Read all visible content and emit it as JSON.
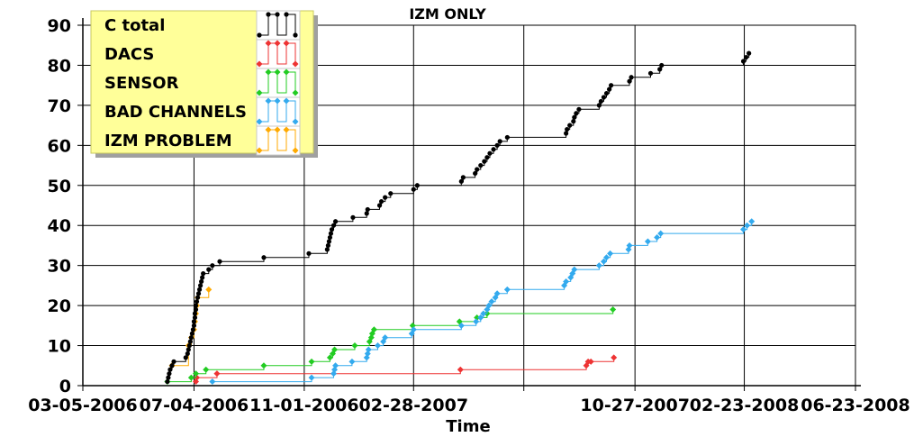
{
  "chart_data": {
    "type": "line",
    "step": true,
    "title": "IZM ONLY",
    "xlabel": "Time",
    "ylabel": "",
    "ylim": [
      0,
      90
    ],
    "yticks": [
      0,
      10,
      20,
      30,
      40,
      50,
      60,
      70,
      80,
      90
    ],
    "xlim": [
      "2006-03-05",
      "2008-06-23"
    ],
    "xticks": [
      {
        "date": "2006-03-05",
        "label": "03-05-2006"
      },
      {
        "date": "2006-07-04",
        "label": "07-04-2006"
      },
      {
        "date": "2006-11-01",
        "label": "11-01-2006"
      },
      {
        "date": "2007-02-28",
        "label": "02-28-2007"
      },
      {
        "date": "2007-06-28",
        "label": ""
      },
      {
        "date": "2007-10-27",
        "label": "10-27-2007"
      },
      {
        "date": "2008-02-23",
        "label": "02-23-2008"
      },
      {
        "date": "2008-06-23",
        "label": "06-23-2008"
      }
    ],
    "grid": true,
    "legend_position": "top-left",
    "series": [
      {
        "name": "C total",
        "color": "#000000",
        "points": [
          [
            "2006-06-05",
            1
          ],
          [
            "2006-06-06",
            2
          ],
          [
            "2006-06-07",
            3
          ],
          [
            "2006-06-08",
            4
          ],
          [
            "2006-06-10",
            5
          ],
          [
            "2006-06-12",
            6
          ],
          [
            "2006-06-25",
            7
          ],
          [
            "2006-06-27",
            8
          ],
          [
            "2006-06-28",
            9
          ],
          [
            "2006-06-29",
            10
          ],
          [
            "2006-06-30",
            11
          ],
          [
            "2006-07-01",
            12
          ],
          [
            "2006-07-02",
            13
          ],
          [
            "2006-07-03",
            14
          ],
          [
            "2006-07-04",
            15
          ],
          [
            "2006-07-04",
            16
          ],
          [
            "2006-07-05",
            17
          ],
          [
            "2006-07-05",
            18
          ],
          [
            "2006-07-06",
            19
          ],
          [
            "2006-07-06",
            20
          ],
          [
            "2006-07-07",
            21
          ],
          [
            "2006-07-08",
            22
          ],
          [
            "2006-07-09",
            23
          ],
          [
            "2006-07-10",
            24
          ],
          [
            "2006-07-11",
            25
          ],
          [
            "2006-07-12",
            26
          ],
          [
            "2006-07-13",
            27
          ],
          [
            "2006-07-14",
            28
          ],
          [
            "2006-07-20",
            29
          ],
          [
            "2006-07-24",
            30
          ],
          [
            "2006-08-01",
            31
          ],
          [
            "2006-09-18",
            32
          ],
          [
            "2006-11-06",
            33
          ],
          [
            "2006-11-26",
            34
          ],
          [
            "2006-11-27",
            35
          ],
          [
            "2006-11-28",
            36
          ],
          [
            "2006-11-29",
            37
          ],
          [
            "2006-11-30",
            38
          ],
          [
            "2006-12-01",
            39
          ],
          [
            "2006-12-03",
            40
          ],
          [
            "2006-12-05",
            41
          ],
          [
            "2006-12-24",
            42
          ],
          [
            "2007-01-08",
            43
          ],
          [
            "2007-01-09",
            44
          ],
          [
            "2007-01-22",
            45
          ],
          [
            "2007-01-24",
            46
          ],
          [
            "2007-01-28",
            47
          ],
          [
            "2007-02-03",
            48
          ],
          [
            "2007-02-28",
            49
          ],
          [
            "2007-03-04",
            50
          ],
          [
            "2007-04-21",
            51
          ],
          [
            "2007-04-23",
            52
          ],
          [
            "2007-05-06",
            53
          ],
          [
            "2007-05-08",
            54
          ],
          [
            "2007-05-12",
            55
          ],
          [
            "2007-05-16",
            56
          ],
          [
            "2007-05-19",
            57
          ],
          [
            "2007-05-22",
            58
          ],
          [
            "2007-05-26",
            59
          ],
          [
            "2007-05-30",
            60
          ],
          [
            "2007-06-02",
            61
          ],
          [
            "2007-06-10",
            62
          ],
          [
            "2007-08-13",
            63
          ],
          [
            "2007-08-14",
            64
          ],
          [
            "2007-08-17",
            65
          ],
          [
            "2007-08-21",
            66
          ],
          [
            "2007-08-22",
            67
          ],
          [
            "2007-08-24",
            68
          ],
          [
            "2007-08-27",
            69
          ],
          [
            "2007-09-18",
            70
          ],
          [
            "2007-09-20",
            71
          ],
          [
            "2007-09-23",
            72
          ],
          [
            "2007-09-26",
            73
          ],
          [
            "2007-09-29",
            74
          ],
          [
            "2007-10-01",
            75
          ],
          [
            "2007-10-21",
            76
          ],
          [
            "2007-10-23",
            77
          ],
          [
            "2007-11-13",
            78
          ],
          [
            "2007-11-23",
            79
          ],
          [
            "2007-11-25",
            80
          ],
          [
            "2008-02-22",
            81
          ],
          [
            "2008-02-25",
            82
          ],
          [
            "2008-02-28",
            83
          ]
        ]
      },
      {
        "name": "DACS",
        "color": "#ee3333",
        "points": [
          [
            "2006-07-06",
            1
          ],
          [
            "2006-07-07",
            2
          ],
          [
            "2006-07-29",
            3
          ],
          [
            "2007-04-20",
            4
          ],
          [
            "2007-09-04",
            5
          ],
          [
            "2007-09-06",
            6
          ],
          [
            "2007-09-09",
            6
          ],
          [
            "2007-10-04",
            7
          ]
        ]
      },
      {
        "name": "SENSOR",
        "color": "#22cc22",
        "points": [
          [
            "2006-06-05",
            1
          ],
          [
            "2006-07-01",
            2
          ],
          [
            "2006-07-06",
            3
          ],
          [
            "2006-07-17",
            4
          ],
          [
            "2006-09-18",
            5
          ],
          [
            "2006-11-09",
            6
          ],
          [
            "2006-11-29",
            7
          ],
          [
            "2006-12-02",
            8
          ],
          [
            "2006-12-04",
            9
          ],
          [
            "2006-12-26",
            10
          ],
          [
            "2007-01-11",
            11
          ],
          [
            "2007-01-13",
            12
          ],
          [
            "2007-01-14",
            13
          ],
          [
            "2007-01-16",
            14
          ],
          [
            "2007-02-27",
            15
          ],
          [
            "2007-04-19",
            16
          ],
          [
            "2007-05-08",
            17
          ],
          [
            "2007-05-19",
            18
          ],
          [
            "2007-10-03",
            19
          ]
        ]
      },
      {
        "name": "BAD CHANNELS",
        "color": "#33aaee",
        "points": [
          [
            "2006-07-24",
            1
          ],
          [
            "2006-11-09",
            2
          ],
          [
            "2006-12-03",
            3
          ],
          [
            "2006-12-04",
            4
          ],
          [
            "2006-12-05",
            5
          ],
          [
            "2006-12-23",
            6
          ],
          [
            "2007-01-08",
            7
          ],
          [
            "2007-01-09",
            8
          ],
          [
            "2007-01-10",
            9
          ],
          [
            "2007-01-20",
            10
          ],
          [
            "2007-01-26",
            11
          ],
          [
            "2007-01-28",
            12
          ],
          [
            "2007-02-26",
            13
          ],
          [
            "2007-02-28",
            14
          ],
          [
            "2007-04-21",
            15
          ],
          [
            "2007-05-07",
            16
          ],
          [
            "2007-05-12",
            17
          ],
          [
            "2007-05-15",
            18
          ],
          [
            "2007-05-19",
            19
          ],
          [
            "2007-05-21",
            20
          ],
          [
            "2007-05-24",
            21
          ],
          [
            "2007-05-28",
            22
          ],
          [
            "2007-05-30",
            23
          ],
          [
            "2007-06-10",
            24
          ],
          [
            "2007-08-11",
            25
          ],
          [
            "2007-08-13",
            26
          ],
          [
            "2007-08-18",
            27
          ],
          [
            "2007-08-20",
            28
          ],
          [
            "2007-08-22",
            29
          ],
          [
            "2007-09-18",
            30
          ],
          [
            "2007-09-23",
            31
          ],
          [
            "2007-09-26",
            32
          ],
          [
            "2007-09-30",
            33
          ],
          [
            "2007-10-20",
            34
          ],
          [
            "2007-10-21",
            35
          ],
          [
            "2007-11-10",
            36
          ],
          [
            "2007-11-20",
            37
          ],
          [
            "2007-11-24",
            38
          ],
          [
            "2008-02-22",
            39
          ],
          [
            "2008-02-26",
            40
          ],
          [
            "2008-03-02",
            41
          ]
        ]
      },
      {
        "name": "IZM PROBLEM",
        "color": "#ffaa00",
        "points": [
          [
            "2006-06-10",
            5
          ],
          [
            "2006-06-28",
            10
          ],
          [
            "2006-07-01",
            12
          ],
          [
            "2006-07-04",
            14
          ],
          [
            "2006-07-05",
            16
          ],
          [
            "2006-07-06",
            18
          ],
          [
            "2006-07-07",
            20
          ],
          [
            "2006-07-08",
            22
          ],
          [
            "2006-07-20",
            24
          ]
        ]
      }
    ]
  }
}
